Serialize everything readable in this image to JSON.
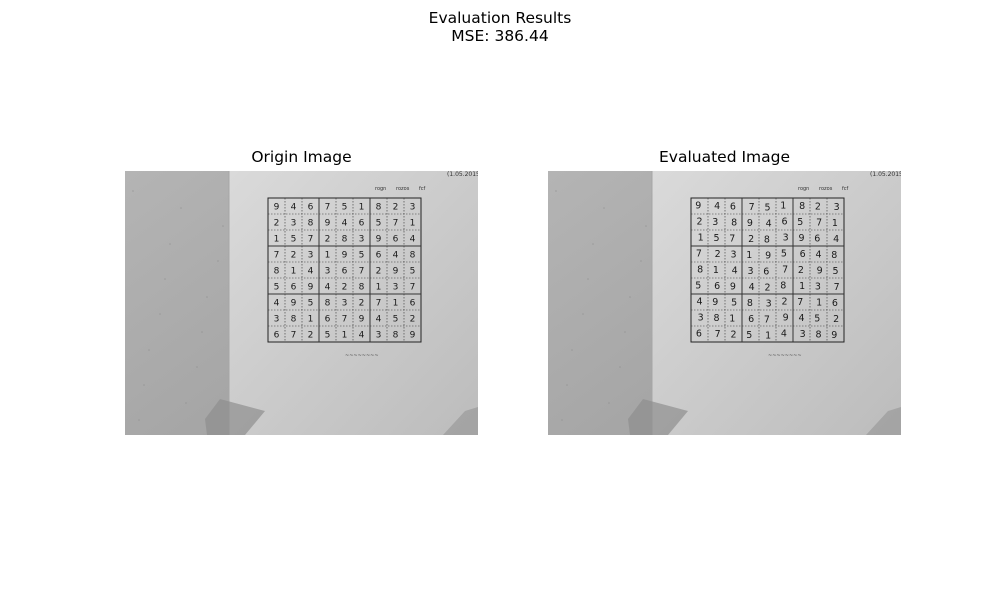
{
  "figure": {
    "title_line1": "Evaluation Results",
    "title_line2": "MSE: 386.44"
  },
  "panels": [
    {
      "title": "Origin Image"
    },
    {
      "title": "Evaluated Image"
    }
  ],
  "sudoku": {
    "header_right": "(1.05.2015)",
    "header_labels": [
      "rogn",
      "rozos",
      "fcf"
    ],
    "grid": [
      [
        "9",
        "4",
        "6",
        "7",
        "5",
        "1",
        "8",
        "2",
        "3"
      ],
      [
        "2",
        "3",
        "8",
        "9",
        "4",
        "6",
        "5",
        "7",
        "1"
      ],
      [
        "1",
        "5",
        "7",
        "2",
        "8",
        "3",
        "9",
        "6",
        "4"
      ],
      [
        "7",
        "2",
        "3",
        "1",
        "9",
        "5",
        "6",
        "4",
        "8"
      ],
      [
        "8",
        "1",
        "4",
        "3",
        "6",
        "7",
        "2",
        "9",
        "5"
      ],
      [
        "5",
        "6",
        "9",
        "4",
        "2",
        "8",
        "1",
        "3",
        "7"
      ],
      [
        "4",
        "9",
        "5",
        "8",
        "3",
        "2",
        "7",
        "1",
        "6"
      ],
      [
        "3",
        "8",
        "1",
        "6",
        "7",
        "9",
        "4",
        "5",
        "2"
      ],
      [
        "6",
        "7",
        "2",
        "5",
        "1",
        "4",
        "3",
        "8",
        "9"
      ]
    ],
    "footer_text": "~~~~~~~~"
  },
  "colors": {
    "background": "#ffffff",
    "desk": "#a9a9a9",
    "paper": "#cfcfcf",
    "ink": "#1a1a1a"
  }
}
